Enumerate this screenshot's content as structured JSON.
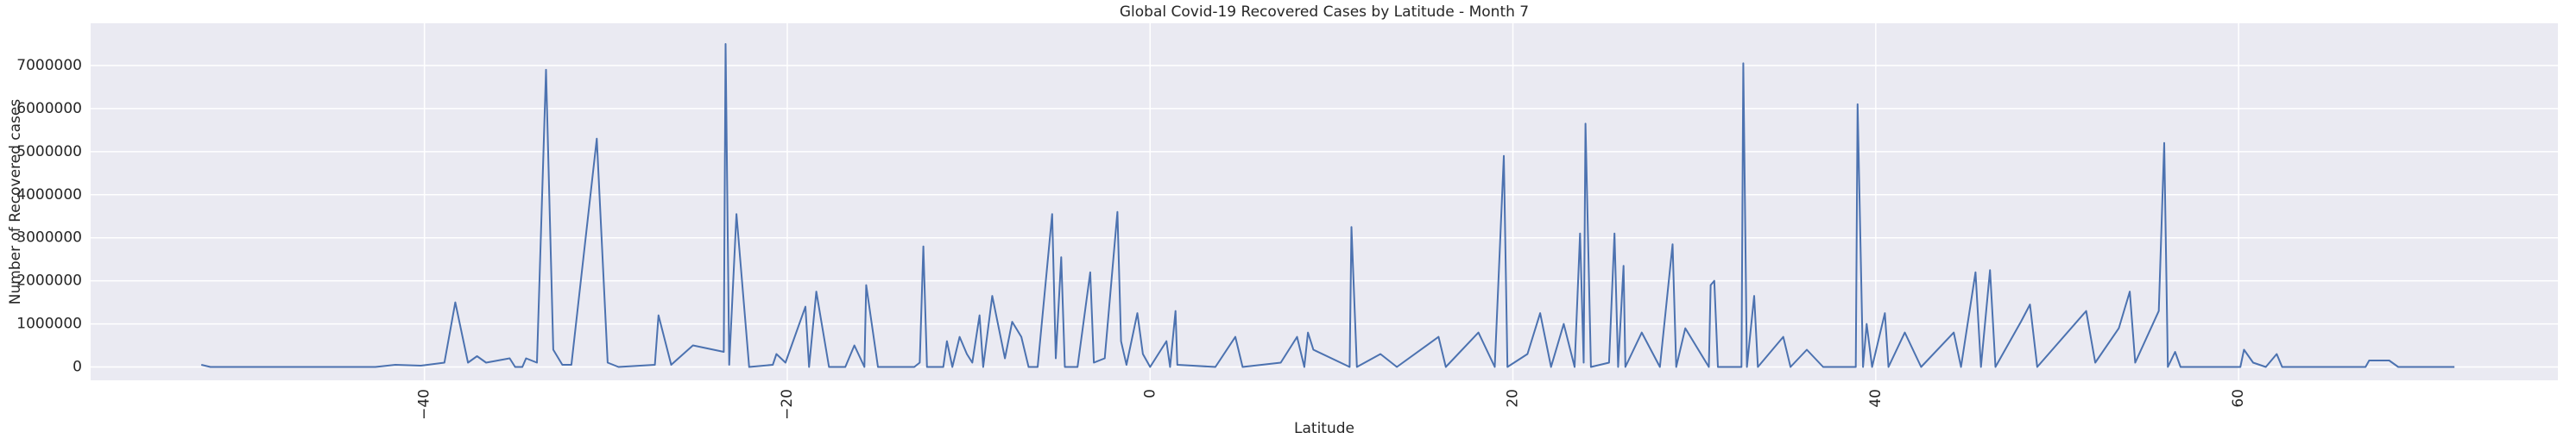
{
  "chart_data": {
    "type": "line",
    "title": "Global Covid-19 Recovered Cases by Latitude - Month 7",
    "x_label": "Latitude",
    "y_label": "Number of Recovered cases",
    "grid": true,
    "xlim": [
      -58.4,
      77.6
    ],
    "ylim": [
      -310000,
      7980000
    ],
    "xticks": [
      {
        "value": -40,
        "label": "−40"
      },
      {
        "value": -20,
        "label": "−20"
      },
      0,
      20,
      40,
      60
    ],
    "yticks": [
      0,
      1000000,
      2000000,
      3000000,
      4000000,
      5000000,
      6000000,
      7000000
    ],
    "series": [
      {
        "color": "#4c72b0",
        "x": [
          -52.3,
          -51.8,
          -42.7,
          -41.6,
          -40.2,
          -38.9,
          -38.3,
          -37.6,
          -37.1,
          -36.6,
          -35.3,
          -35.0,
          -34.6,
          -34.4,
          -33.8,
          -33.3,
          -32.9,
          -32.4,
          -31.9,
          -30.5,
          -29.9,
          -29.3,
          -27.3,
          -27.1,
          -26.4,
          -25.2,
          -23.5,
          -23.4,
          -23.2,
          -22.8,
          -22.1,
          -20.8,
          -20.6,
          -20.1,
          -19.0,
          -18.8,
          -18.4,
          -17.7,
          -16.8,
          -16.3,
          -15.75,
          -15.65,
          -15.0,
          -13.0,
          -12.7,
          -12.5,
          -12.3,
          -11.4,
          -11.2,
          -10.9,
          -10.5,
          -10.1,
          -9.8,
          -9.4,
          -9.2,
          -8.7,
          -8.0,
          -7.6,
          -7.1,
          -6.7,
          -6.2,
          -5.4,
          -5.2,
          -4.9,
          -4.7,
          -4.0,
          -3.3,
          -3.1,
          -2.5,
          -1.8,
          -1.6,
          -1.3,
          -0.7,
          -0.4,
          0.0,
          0.9,
          1.1,
          1.4,
          1.5,
          3.6,
          4.7,
          5.1,
          7.2,
          8.1,
          8.5,
          8.7,
          9.0,
          11.0,
          11.1,
          11.4,
          12.7,
          13.6,
          15.9,
          16.3,
          18.1,
          19.0,
          19.5,
          19.7,
          20.8,
          21.5,
          22.1,
          22.8,
          23.4,
          23.7,
          23.9,
          24.0,
          24.3,
          25.3,
          25.6,
          25.8,
          26.1,
          26.2,
          27.1,
          28.1,
          28.8,
          29.0,
          29.5,
          30.8,
          30.9,
          31.1,
          31.3,
          32.6,
          32.7,
          32.9,
          33.3,
          33.5,
          34.9,
          35.3,
          36.2,
          37.1,
          38.9,
          39.0,
          39.3,
          39.5,
          39.8,
          40.5,
          40.7,
          41.6,
          42.5,
          44.3,
          44.7,
          45.5,
          45.8,
          46.3,
          46.6,
          48.0,
          48.5,
          48.9,
          51.6,
          52.1,
          53.4,
          54.0,
          54.3,
          55.6,
          55.9,
          56.1,
          56.5,
          56.8,
          60.1,
          60.3,
          60.8,
          61.5,
          62.1,
          62.4,
          67.0,
          67.2,
          68.3,
          68.8,
          71.9
        ],
        "values": [
          50000,
          0,
          0,
          50000,
          30000,
          100000,
          1500000,
          100000,
          250000,
          100000,
          200000,
          0,
          0,
          200000,
          100000,
          6900000,
          400000,
          50000,
          50000,
          5300000,
          100000,
          0,
          50000,
          1200000,
          50000,
          500000,
          350000,
          7500000,
          50000,
          3550000,
          0,
          50000,
          300000,
          100000,
          1400000,
          0,
          1750000,
          0,
          0,
          500000,
          0,
          1900000,
          0,
          0,
          100000,
          2800000,
          0,
          0,
          600000,
          0,
          700000,
          300000,
          100000,
          1200000,
          0,
          1650000,
          200000,
          1050000,
          700000,
          0,
          0,
          3550000,
          200000,
          2550000,
          0,
          0,
          2200000,
          100000,
          200000,
          3600000,
          600000,
          50000,
          1250000,
          300000,
          0,
          600000,
          0,
          1300000,
          50000,
          0,
          700000,
          0,
          100000,
          700000,
          0,
          800000,
          400000,
          0,
          3250000,
          0,
          300000,
          0,
          700000,
          0,
          800000,
          0,
          4900000,
          0,
          300000,
          1250000,
          0,
          1000000,
          0,
          3100000,
          100000,
          5650000,
          0,
          100000,
          3100000,
          0,
          2350000,
          0,
          800000,
          0,
          2850000,
          0,
          900000,
          0,
          1900000,
          2000000,
          0,
          0,
          7050000,
          0,
          1650000,
          0,
          700000,
          0,
          400000,
          0,
          0,
          6100000,
          0,
          1000000,
          0,
          1250000,
          0,
          800000,
          0,
          800000,
          0,
          2200000,
          0,
          2250000,
          0,
          1050000,
          1450000,
          0,
          1300000,
          100000,
          900000,
          1750000,
          100000,
          1300000,
          5200000,
          0,
          350000,
          0,
          0,
          400000,
          100000,
          0,
          300000,
          0,
          0,
          150000,
          150000,
          0,
          0
        ]
      }
    ]
  }
}
